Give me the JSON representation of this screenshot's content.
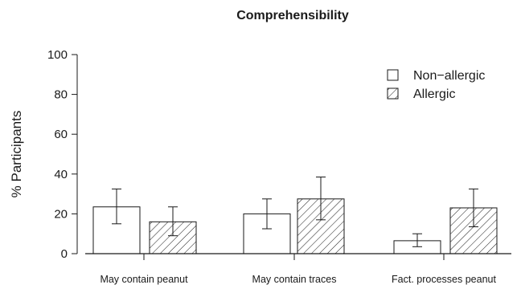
{
  "chart_data": {
    "type": "bar",
    "title": "Comprehensibility",
    "xlabel": "",
    "ylabel": "% Participants",
    "ylim": [
      0,
      100
    ],
    "yticks": [
      0,
      20,
      40,
      60,
      80,
      100
    ],
    "categories": [
      "May contain peanut",
      "May contain traces",
      "Fact. processes peanut"
    ],
    "series": [
      {
        "name": "Non−allergic",
        "fill": "none",
        "values": [
          23.5,
          20,
          6.5
        ],
        "error_low": [
          15,
          12.5,
          3.5
        ],
        "error_high": [
          32.5,
          27.5,
          10
        ]
      },
      {
        "name": "Allergic",
        "fill": "hatched",
        "values": [
          16,
          27.5,
          23
        ],
        "error_low": [
          9,
          17,
          13.5
        ],
        "error_high": [
          23.5,
          38.5,
          32.5
        ]
      }
    ],
    "legend_position": "top-right",
    "grid": false,
    "colors": {
      "stroke": "#1a1a1a",
      "background": "#ffffff"
    }
  }
}
